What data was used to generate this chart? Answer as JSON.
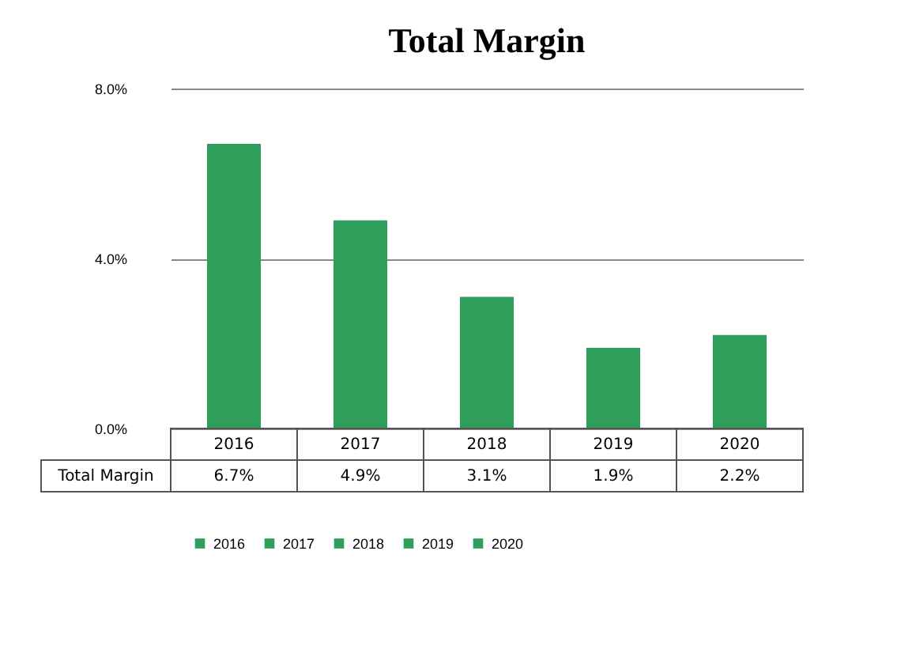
{
  "chart_data": {
    "type": "bar",
    "title": "Total Margin",
    "categories": [
      "2016",
      "2017",
      "2018",
      "2019",
      "2020"
    ],
    "series": [
      {
        "name": "2016",
        "color": "#2e9e5a",
        "values": [
          6.7,
          null,
          null,
          null,
          null
        ],
        "value_labels": [
          "6.7%",
          null,
          null,
          null,
          null
        ]
      },
      {
        "name": "2017",
        "color": "#2e9e5a",
        "values": [
          null,
          4.9,
          null,
          null,
          null
        ],
        "value_labels": [
          null,
          "4.9%",
          null,
          null,
          null
        ]
      },
      {
        "name": "2018",
        "color": "#2e9e5a",
        "values": [
          null,
          null,
          3.1,
          null,
          null
        ],
        "value_labels": [
          null,
          null,
          "3.1%",
          null,
          null
        ]
      },
      {
        "name": "2019",
        "color": "#2e9e5a",
        "values": [
          null,
          null,
          null,
          1.9,
          null
        ],
        "value_labels": [
          null,
          null,
          null,
          "1.9%",
          null
        ]
      },
      {
        "name": "2020",
        "color": "#2e9e5a",
        "values": [
          null,
          null,
          null,
          null,
          2.2
        ],
        "value_labels": [
          null,
          null,
          null,
          null,
          "2.2%"
        ]
      }
    ],
    "annotations": [
      "Total Margin"
    ],
    "ylim": [
      0,
      8
    ],
    "yticks": [
      {
        "value": 0,
        "label": "0.0%"
      },
      {
        "value": 4,
        "label": "4.0%"
      },
      {
        "value": 8,
        "label": "8.0%"
      }
    ],
    "grid": "y",
    "legend": "bottom"
  }
}
